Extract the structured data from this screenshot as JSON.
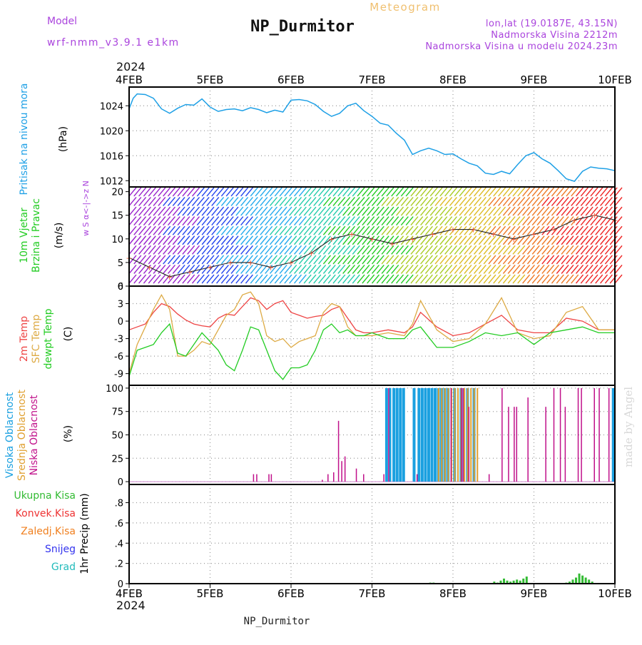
{
  "header": {
    "model_label": "Model",
    "model_value": "wrf-nmm_v3.9.1 e1km",
    "title": "NP_Durmitor",
    "subtitle": "Meteogram",
    "location": "lon,lat (19.0187E, 43.15N)",
    "elevation": "Nadmorska Visina 2212m",
    "model_elevation": "Nadmorska Visina u modelu 2024.23m",
    "footer": "NP_Durmitor",
    "watermark": "made by Angel",
    "year": "2024"
  },
  "colors": {
    "pressure": "#1ea0e6",
    "wind_title": "#22cc22",
    "t2m": "#ee4444",
    "sfc": "#ddaa44",
    "dew": "#22cc22",
    "high": "#1aa0e0",
    "mid": "#e0a030",
    "low": "#c0108a",
    "total": "#33bb33",
    "conv": "#ee3333",
    "frz": "#f08020",
    "snow": "#3333ee",
    "hail": "#22bbbb",
    "label_purple": "#aa44dd"
  },
  "chart_data": [
    {
      "type": "line",
      "name": "pressure",
      "ylabel": "(hPa)",
      "side_labels": [
        "Pritisak na nivou mora"
      ],
      "ylim": [
        1011,
        1027
      ],
      "yticks": [
        1012,
        1016,
        1020,
        1024
      ],
      "x_labels": [
        "4FEB",
        "5FEB",
        "6FEB",
        "7FEB",
        "8FEB",
        "9FEB",
        "10FEB"
      ],
      "grid": true,
      "series": [
        {
          "x": [
            0,
            0.05,
            0.1,
            0.2,
            0.3,
            0.4,
            0.5,
            0.6,
            0.7,
            0.8,
            0.9,
            1.0,
            1.1,
            1.2,
            1.3,
            1.4,
            1.5,
            1.6,
            1.7,
            1.8,
            1.9,
            2.0,
            2.1,
            2.2,
            2.3,
            2.4,
            2.5,
            2.6,
            2.7,
            2.8,
            2.9,
            3.0,
            3.1,
            3.2,
            3.3,
            3.4,
            3.5,
            3.6,
            3.7,
            3.8,
            3.9,
            4.0,
            4.1,
            4.2,
            4.3,
            4.4,
            4.5,
            4.6,
            4.7,
            4.8,
            4.9,
            5.0,
            5.1,
            5.2,
            5.3,
            5.4,
            5.5,
            5.6,
            5.7,
            5.8,
            5.9,
            6.0
          ],
          "y": [
            1023.5,
            1025.2,
            1025.9,
            1025.8,
            1025.2,
            1023.5,
            1022.8,
            1023.6,
            1024.2,
            1024.1,
            1025.1,
            1023.8,
            1023.1,
            1023.4,
            1023.5,
            1023.2,
            1023.7,
            1023.4,
            1022.9,
            1023.3,
            1023.0,
            1024.9,
            1025.0,
            1024.8,
            1024.2,
            1023.1,
            1022.3,
            1022.8,
            1024.0,
            1024.4,
            1023.2,
            1022.3,
            1021.2,
            1020.9,
            1019.6,
            1018.5,
            1016.2,
            1016.8,
            1017.2,
            1016.8,
            1016.2,
            1016.3,
            1015.5,
            1014.8,
            1014.4,
            1013.2,
            1013.0,
            1013.5,
            1013.1,
            1014.6,
            1016.0,
            1016.5,
            1015.5,
            1014.8,
            1013.6,
            1012.3,
            1011.9,
            1013.5,
            1014.2,
            1014.0,
            1013.9,
            1013.6
          ]
        }
      ]
    },
    {
      "type": "barbs",
      "name": "wind",
      "ylabel": "(m/s)",
      "side_labels": [
        "10m Vjetar",
        "Brzina i Pravac"
      ],
      "compass": "w S α<-|->z N",
      "ylim": [
        0,
        21
      ],
      "yticks": [
        0,
        5,
        10,
        15,
        20
      ],
      "x": [
        0,
        0.25,
        0.5,
        0.75,
        1.0,
        1.25,
        1.5,
        1.75,
        2.0,
        2.25,
        2.5,
        2.75,
        3.0,
        3.25,
        3.5,
        3.75,
        4.0,
        4.25,
        4.5,
        4.75,
        5.0,
        5.25,
        5.5,
        5.75,
        6.0
      ],
      "speed": [
        6,
        4,
        2,
        3,
        4,
        5,
        5,
        4,
        5,
        7,
        10,
        11,
        10,
        9,
        10,
        11,
        12,
        12,
        11,
        10,
        11,
        12,
        14,
        15,
        14
      ],
      "colors_by_band": [
        "#9922cc",
        "#2244ee",
        "#22aaee",
        "#22ccaa",
        "#22cc22",
        "#aacc22",
        "#ddbb22",
        "#ee7722",
        "#ee2222"
      ]
    },
    {
      "type": "line",
      "name": "temperature",
      "ylabel": "(C)",
      "side_labels": [
        "2m Temp",
        "SFC Temp",
        "dewpt Temp"
      ],
      "ylim": [
        -11,
        6
      ],
      "yticks": [
        -9,
        -6,
        -3,
        0,
        3,
        6
      ],
      "grid": true,
      "series": [
        {
          "name": "2m Temp",
          "x": [
            0,
            0.1,
            0.2,
            0.3,
            0.4,
            0.5,
            0.6,
            0.7,
            0.8,
            0.9,
            1.0,
            1.1,
            1.2,
            1.3,
            1.4,
            1.5,
            1.6,
            1.7,
            1.8,
            1.9,
            2.0,
            2.1,
            2.2,
            2.3,
            2.4,
            2.5,
            2.6,
            2.7,
            2.8,
            2.9,
            3.0,
            3.2,
            3.4,
            3.5,
            3.6,
            3.8,
            4.0,
            4.2,
            4.4,
            4.6,
            4.8,
            5.0,
            5.2,
            5.4,
            5.6,
            5.8,
            6.0
          ],
          "y": [
            -1.5,
            -1.0,
            -0.5,
            1.5,
            3.0,
            2.5,
            1.2,
            0.2,
            -0.5,
            -0.8,
            -1.0,
            0.5,
            1.2,
            1.0,
            2.5,
            4.0,
            3.5,
            2.0,
            3.0,
            3.5,
            1.5,
            1.0,
            0.5,
            0.8,
            1.0,
            2.0,
            2.5,
            0.5,
            -1.5,
            -2.0,
            -2.0,
            -1.5,
            -2.0,
            -1.0,
            1.5,
            -1.0,
            -2.5,
            -2.0,
            -0.5,
            1.0,
            -1.5,
            -2.0,
            -2.0,
            0.5,
            0.0,
            -1.5,
            -1.5
          ]
        },
        {
          "name": "SFC Temp",
          "x": [
            0,
            0.1,
            0.2,
            0.3,
            0.4,
            0.5,
            0.6,
            0.7,
            0.8,
            0.9,
            1.0,
            1.1,
            1.2,
            1.3,
            1.4,
            1.5,
            1.6,
            1.7,
            1.8,
            1.9,
            2.0,
            2.1,
            2.2,
            2.3,
            2.4,
            2.5,
            2.6,
            2.7,
            2.8,
            2.9,
            3.0,
            3.2,
            3.4,
            3.5,
            3.6,
            3.8,
            4.0,
            4.2,
            4.4,
            4.6,
            4.8,
            5.0,
            5.2,
            5.4,
            5.6,
            5.8,
            6.0
          ],
          "y": [
            -9.0,
            -4.0,
            -1.0,
            2.0,
            4.5,
            2.0,
            -6.0,
            -6.0,
            -5.0,
            -3.5,
            -4.0,
            -1.5,
            1.0,
            2.0,
            4.5,
            5.0,
            3.0,
            -2.5,
            -3.5,
            -3.0,
            -4.5,
            -3.5,
            -3.0,
            -2.5,
            1.5,
            3.0,
            2.5,
            -1.0,
            -2.5,
            -2.5,
            -2.5,
            -2.0,
            -2.5,
            -0.5,
            3.5,
            -1.5,
            -3.5,
            -3.0,
            -0.5,
            4.0,
            -2.0,
            -3.0,
            -2.5,
            1.5,
            2.5,
            -1.5,
            -1.5
          ]
        },
        {
          "name": "dewpt Temp",
          "x": [
            0,
            0.1,
            0.2,
            0.3,
            0.4,
            0.5,
            0.6,
            0.7,
            0.8,
            0.9,
            1.0,
            1.1,
            1.2,
            1.3,
            1.4,
            1.5,
            1.6,
            1.7,
            1.8,
            1.9,
            2.0,
            2.1,
            2.2,
            2.3,
            2.4,
            2.5,
            2.6,
            2.7,
            2.8,
            2.9,
            3.0,
            3.2,
            3.4,
            3.5,
            3.6,
            3.8,
            4.0,
            4.2,
            4.4,
            4.6,
            4.8,
            5.0,
            5.2,
            5.4,
            5.6,
            5.8,
            6.0
          ],
          "y": [
            -9.5,
            -5.0,
            -4.5,
            -4.0,
            -2.0,
            -0.5,
            -5.5,
            -6.0,
            -4.0,
            -2.0,
            -3.5,
            -5.0,
            -7.5,
            -8.5,
            -5.0,
            -1.0,
            -1.5,
            -5.0,
            -8.5,
            -10.0,
            -8.0,
            -8.0,
            -7.5,
            -5.0,
            -1.5,
            -0.5,
            -2.0,
            -1.5,
            -2.5,
            -2.5,
            -2.0,
            -3.0,
            -3.0,
            -1.5,
            -1.0,
            -4.5,
            -4.5,
            -3.5,
            -2.0,
            -2.5,
            -2.0,
            -4.0,
            -2.0,
            -1.5,
            -1.0,
            -2.0,
            -2.0
          ]
        }
      ]
    },
    {
      "type": "bar",
      "name": "cloud",
      "ylabel": "(%)",
      "side_labels": [
        "Visoka Oblacnost",
        "Srednja Oblacnost",
        "Niska Oblacnost"
      ],
      "ylim": [
        -3,
        103
      ],
      "yticks": [
        0,
        25,
        50,
        75,
        100
      ],
      "grid": true,
      "high": {
        "x": [
          3.18,
          3.22,
          3.27,
          3.31,
          3.35,
          3.39,
          3.52,
          3.58,
          3.62,
          3.66,
          3.7,
          3.74,
          3.78,
          3.82,
          3.86,
          3.9,
          3.94,
          4.02,
          4.1,
          4.18,
          4.26,
          5.98
        ],
        "y": [
          100,
          100,
          100,
          100,
          100,
          100,
          100,
          100,
          100,
          100,
          100,
          100,
          100,
          100,
          100,
          100,
          100,
          100,
          100,
          100,
          100,
          100
        ]
      },
      "mid": {
        "x": [
          3.8,
          3.84,
          3.88,
          3.92,
          3.96,
          4.0,
          4.04,
          4.08,
          4.12,
          4.16,
          4.2,
          4.24,
          4.28
        ],
        "y": [
          100,
          100,
          100,
          100,
          100,
          100,
          100,
          100,
          100,
          100,
          100,
          100,
          100
        ]
      },
      "low": {
        "x": [
          1.53,
          1.57,
          1.72,
          1.75,
          2.38,
          2.45,
          2.52,
          2.58,
          2.62,
          2.66,
          2.8,
          2.89,
          3.14,
          3.2,
          3.55,
          3.97,
          4.1,
          4.12,
          4.19,
          4.44,
          4.6,
          4.68,
          4.75,
          4.78,
          4.92,
          5.14,
          5.24,
          5.32,
          5.38,
          5.54,
          5.58,
          5.74,
          5.8,
          5.92
        ],
        "y": [
          8,
          8,
          8,
          8,
          2,
          8,
          10,
          65,
          22,
          27,
          14,
          8,
          8,
          100,
          8,
          100,
          100,
          100,
          80,
          8,
          100,
          80,
          80,
          80,
          90,
          80,
          100,
          100,
          80,
          100,
          100,
          100,
          100,
          100
        ]
      }
    },
    {
      "type": "bar",
      "name": "precip",
      "ylabel": "1hr Precip (mm)",
      "side_labels": [
        "Ukupna Kisa",
        "Konvek.Kisa",
        "Zaledj.Kisa",
        "Snijeg",
        "Grad"
      ],
      "ylim": [
        0,
        0.98
      ],
      "yticks": [
        0,
        0.2,
        0.4,
        0.6,
        0.8
      ],
      "grid": true,
      "series": [
        {
          "name": "Ukupna Kisa",
          "x": [
            3.72,
            3.76,
            4.51,
            4.55,
            4.59,
            4.63,
            4.67,
            4.71,
            4.75,
            4.79,
            4.83,
            4.87,
            4.91,
            5.4,
            5.44,
            5.48,
            5.52,
            5.56,
            5.6,
            5.64,
            5.68,
            5.72
          ],
          "y": [
            0.01,
            0.01,
            0.02,
            0.01,
            0.03,
            0.05,
            0.03,
            0.02,
            0.03,
            0.04,
            0.03,
            0.05,
            0.07,
            0.01,
            0.02,
            0.04,
            0.06,
            0.1,
            0.08,
            0.06,
            0.04,
            0.02
          ]
        }
      ]
    }
  ]
}
